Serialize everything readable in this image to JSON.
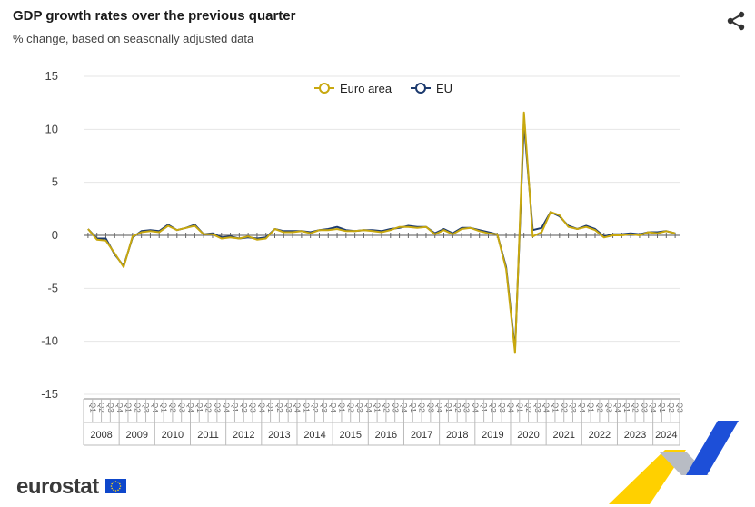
{
  "header": {
    "title": "GDP growth rates over the previous quarter",
    "subtitle": "% change, based on seasonally adjusted data"
  },
  "icons": {
    "share": "share-icon",
    "flag": "eu-flag-icon"
  },
  "brand": {
    "logo_text": "eurostat"
  },
  "colors": {
    "euro_area": "#c8a80f",
    "eu": "#1c3a6e",
    "grid": "#e6e6e6",
    "axis": "#888888"
  },
  "chart_data": {
    "type": "line",
    "title": "GDP growth rates over the previous quarter",
    "subtitle": "% change, based on seasonally adjusted data",
    "xlabel": "",
    "ylabel": "",
    "ylim": [
      -15,
      15
    ],
    "yticks": [
      "15",
      "10",
      "5",
      "0",
      "-5",
      "-10",
      "-15"
    ],
    "grid": true,
    "legend": "top-center",
    "years": [
      "2008",
      "2009",
      "2010",
      "2011",
      "2012",
      "2013",
      "2014",
      "2015",
      "2016",
      "2017",
      "2018",
      "2019",
      "2020",
      "2021",
      "2022",
      "2023",
      "2024"
    ],
    "quarter_labels": [
      "Q1",
      "Q2",
      "Q3",
      "Q4"
    ],
    "last_year_quarters": 3,
    "series": [
      {
        "name": "Euro area",
        "color": "#c8a80f",
        "values": [
          0.6,
          -0.4,
          -0.5,
          -1.7,
          -3.0,
          -0.1,
          0.3,
          0.4,
          0.3,
          0.9,
          0.5,
          0.7,
          0.9,
          0.1,
          0.1,
          -0.3,
          -0.2,
          -0.3,
          -0.1,
          -0.4,
          -0.3,
          0.6,
          0.3,
          0.3,
          0.4,
          0.2,
          0.5,
          0.5,
          0.6,
          0.4,
          0.4,
          0.5,
          0.4,
          0.3,
          0.5,
          0.8,
          0.8,
          0.7,
          0.8,
          0.1,
          0.5,
          0.1,
          0.6,
          0.7,
          0.4,
          0.2,
          0.1,
          -3.2,
          -11.1,
          11.6,
          -0.1,
          0.3,
          2.2,
          1.9,
          0.8,
          0.6,
          0.8,
          0.5,
          -0.2,
          0.0,
          0.0,
          0.1,
          0.0,
          0.3,
          0.2,
          0.4,
          0.2
        ]
      },
      {
        "name": "EU",
        "color": "#1c3a6e",
        "values": [
          0.6,
          -0.3,
          -0.3,
          -1.8,
          -2.9,
          -0.2,
          0.4,
          0.5,
          0.4,
          1.0,
          0.5,
          0.7,
          1.0,
          0.1,
          0.2,
          -0.2,
          -0.1,
          -0.3,
          -0.2,
          -0.3,
          -0.2,
          0.6,
          0.4,
          0.4,
          0.4,
          0.3,
          0.5,
          0.6,
          0.8,
          0.5,
          0.4,
          0.5,
          0.5,
          0.4,
          0.6,
          0.7,
          0.9,
          0.8,
          0.8,
          0.2,
          0.6,
          0.2,
          0.7,
          0.7,
          0.5,
          0.3,
          0.1,
          -3.0,
          -10.8,
          10.6,
          0.5,
          0.7,
          2.2,
          1.8,
          0.9,
          0.6,
          0.9,
          0.6,
          -0.1,
          0.1,
          0.1,
          0.2,
          0.1,
          0.3,
          0.3,
          0.4,
          0.2
        ]
      }
    ]
  }
}
